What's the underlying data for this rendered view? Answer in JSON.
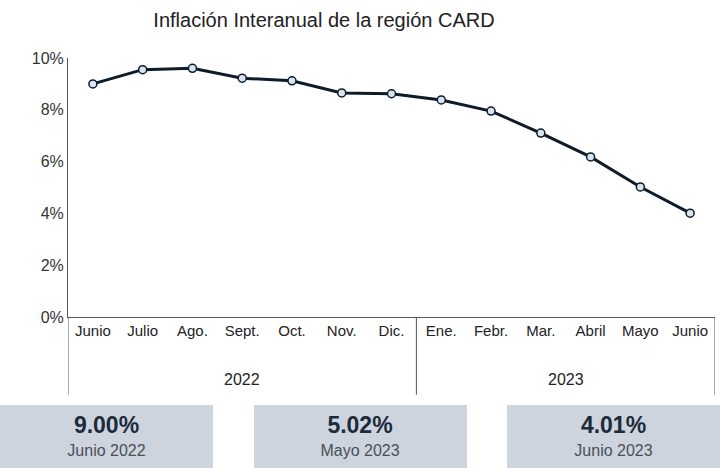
{
  "chart_data": {
    "type": "line",
    "title": "Inflación Interanual de la región CARD",
    "categories": [
      "Junio",
      "Julio",
      "Ago.",
      "Sept.",
      "Oct.",
      "Nov.",
      "Dic.",
      "Ene.",
      "Febr.",
      "Mar.",
      "Abril",
      "Mayo",
      "Junio"
    ],
    "x_groups": [
      {
        "label": "2022",
        "count": 7
      },
      {
        "label": "2023",
        "count": 6
      }
    ],
    "values": [
      9.0,
      9.55,
      9.6,
      9.22,
      9.12,
      8.65,
      8.62,
      8.38,
      7.95,
      7.1,
      6.18,
      5.02,
      4.01
    ],
    "color": "#0d1b2a",
    "marker": "circle",
    "ylim": [
      0,
      10
    ],
    "yticks": [
      {
        "value": 0,
        "label": "0%"
      },
      {
        "value": 2,
        "label": "2%"
      },
      {
        "value": 4,
        "label": "4%"
      },
      {
        "value": 6,
        "label": "6%"
      },
      {
        "value": 8,
        "label": "8%"
      },
      {
        "value": 10,
        "label": "10%"
      }
    ],
    "grid": false
  },
  "highlights": [
    {
      "value": "9.00%",
      "period": "Junio 2022"
    },
    {
      "value": "5.02%",
      "period": "Mayo 2023"
    },
    {
      "value": "4.01%",
      "period": "Junio 2023"
    }
  ]
}
